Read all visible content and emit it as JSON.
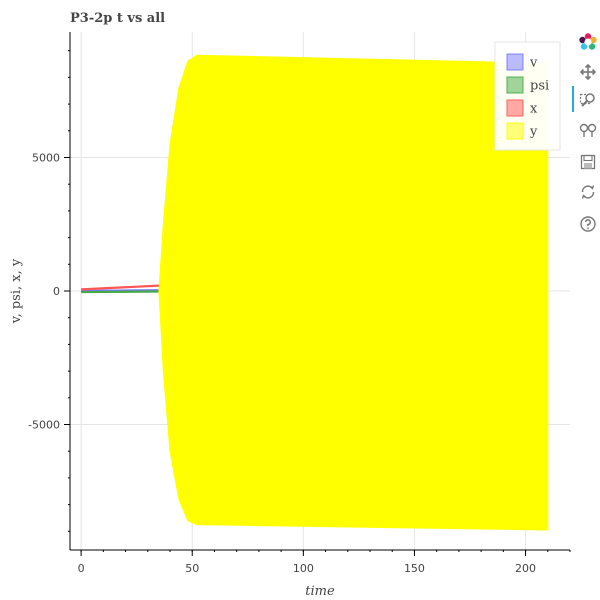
{
  "chart_data": {
    "type": "area",
    "title": "P3-2p t vs all",
    "xlabel": "time",
    "ylabel": "v, psi, x, y",
    "xlim": [
      -5,
      220
    ],
    "ylim": [
      -9700,
      9700
    ],
    "xticks": [
      0,
      50,
      100,
      150,
      200
    ],
    "yticks": [
      -5000,
      0,
      5000
    ],
    "tick_labels_x": [
      "0",
      "50",
      "100",
      "150",
      "200"
    ],
    "tick_labels_y": [
      "-5000",
      "0",
      "5000"
    ],
    "grid": true,
    "legend_position": "top-right",
    "series": [
      {
        "name": "v",
        "color": "#7777ff",
        "start": 0,
        "end": 35,
        "values_start": 0,
        "values_end": 30
      },
      {
        "name": "psi",
        "color": "#44aa44",
        "start": 0,
        "end": 35,
        "values_start": -40,
        "values_end": -20
      },
      {
        "name": "x",
        "color": "#ff5555",
        "start": 0,
        "end": 35,
        "values_start": 60,
        "values_end": 200
      },
      {
        "name": "y",
        "color": "#ffff00",
        "envelope_upper": [
          [
            35,
            0
          ],
          [
            37,
            2500
          ],
          [
            40,
            5500
          ],
          [
            44,
            7600
          ],
          [
            48,
            8600
          ],
          [
            52,
            8830
          ],
          [
            210,
            8530
          ]
        ],
        "envelope_lower": [
          [
            35,
            0
          ],
          [
            37,
            -3000
          ],
          [
            40,
            -6000
          ],
          [
            44,
            -7800
          ],
          [
            48,
            -8600
          ],
          [
            52,
            -8750
          ],
          [
            210,
            -8950
          ]
        ]
      }
    ]
  },
  "toolbar": {
    "tools": [
      {
        "name": "bokeh-logo-icon"
      },
      {
        "name": "pan-icon"
      },
      {
        "name": "box-zoom-icon"
      },
      {
        "name": "wheel-zoom-icon"
      },
      {
        "name": "save-icon"
      },
      {
        "name": "reset-icon"
      },
      {
        "name": "help-icon"
      }
    ]
  }
}
